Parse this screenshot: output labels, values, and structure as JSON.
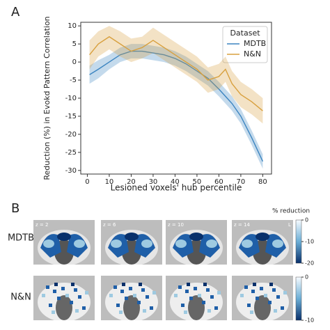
{
  "panel_a_label": "A",
  "chart_data": {
    "type": "line",
    "xlabel": "Lesioned voxels' hub percentile",
    "ylabel": "Reduction (%) in Evokd Pattern Correlation",
    "xlim": [
      -3,
      84
    ],
    "xticks": [
      0,
      10,
      20,
      30,
      40,
      50,
      60,
      70,
      80
    ],
    "ylim": [
      -31,
      11
    ],
    "yticks": [
      -30,
      -25,
      -20,
      -15,
      -10,
      -5,
      0,
      5,
      10
    ],
    "legend_title": "Dataset",
    "legend": "upper right",
    "series": [
      {
        "name": "MDTB",
        "color": "#3b84c0",
        "x": [
          1,
          5,
          10,
          15,
          20,
          25,
          30,
          35,
          40,
          45,
          50,
          55,
          60,
          63,
          66,
          70,
          75,
          80
        ],
        "values": [
          -3.5,
          -2,
          0,
          2,
          3,
          3,
          2.5,
          2,
          1,
          -0.5,
          -2.5,
          -4.5,
          -7.5,
          -9.5,
          -11.5,
          -15,
          -21,
          -27.5
        ],
        "ci_lower": [
          -6,
          -4.5,
          -2,
          0,
          1,
          1,
          0.5,
          0,
          -1,
          -2.5,
          -4.5,
          -6.5,
          -9.5,
          -11.5,
          -13.5,
          -17,
          -23,
          -29.5
        ],
        "ci_upper": [
          -1,
          0.5,
          2,
          4,
          5,
          5,
          4.5,
          4,
          3,
          1.5,
          -0.5,
          -2.5,
          -5.5,
          -7.5,
          -9.5,
          -13,
          -19,
          -25.5
        ]
      },
      {
        "name": "N&N",
        "color": "#d8a03e",
        "x": [
          1,
          5,
          10,
          15,
          20,
          25,
          30,
          35,
          40,
          45,
          50,
          55,
          60,
          63,
          66,
          70,
          75,
          80
        ],
        "values": [
          2,
          5,
          7,
          5,
          3,
          4,
          6,
          4,
          2,
          0,
          -2,
          -5,
          -4,
          -2,
          -6,
          -9,
          -11,
          -13.5
        ],
        "ci_lower": [
          -2,
          1.5,
          3.5,
          1.5,
          0,
          1,
          2.5,
          0.5,
          -1.5,
          -3.5,
          -5.5,
          -8.5,
          -7.5,
          -5.5,
          -9.5,
          -12.5,
          -14.5,
          -17
        ],
        "ci_upper": [
          6,
          8.5,
          10,
          8.5,
          6.5,
          7,
          9.5,
          7.5,
          5.5,
          3.5,
          1.5,
          -1.5,
          -0.5,
          1.5,
          -2.5,
          -5.5,
          -7.5,
          -10
        ]
      }
    ]
  },
  "panel_b": {
    "label": "B",
    "rows": [
      "MDTB",
      "N&N"
    ],
    "slices": [
      "z = 2",
      "z = 6",
      "z = 10",
      "z = 14"
    ],
    "side": "L",
    "colorbar_title": "% reduction",
    "colorbars": [
      {
        "lim": [
          -20,
          0
        ],
        "ticks": [
          0,
          -10,
          -20
        ]
      },
      {
        "lim": [
          -10,
          0
        ],
        "ticks": [
          0,
          -10
        ]
      }
    ]
  }
}
